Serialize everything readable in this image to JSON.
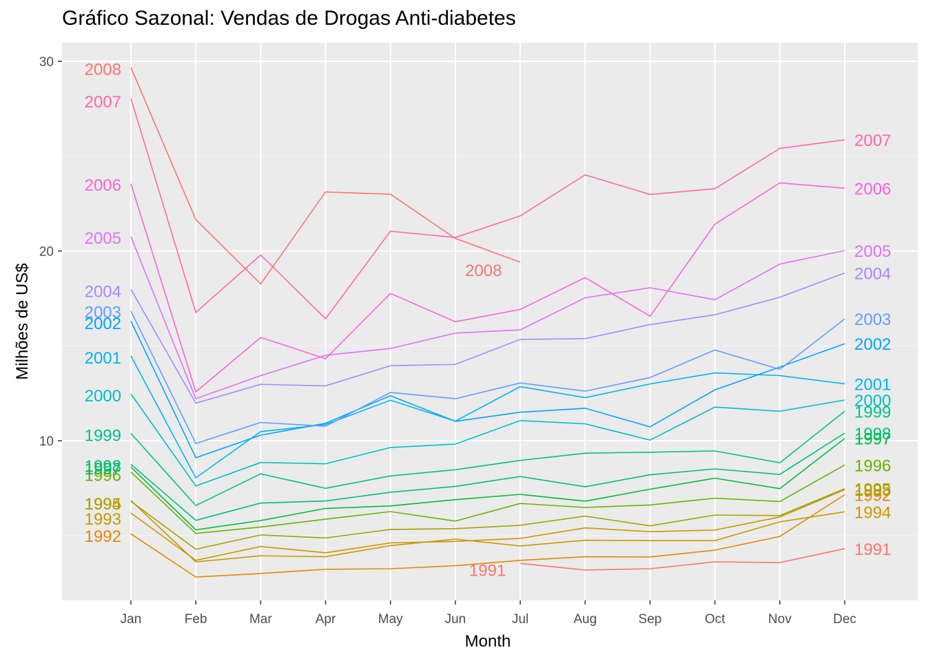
{
  "chart_data": {
    "type": "line",
    "title": "Gráfico Sazonal: Vendas de Drogas Anti-diabetes",
    "xlabel": "Month",
    "ylabel": "Milhões de US$",
    "categories": [
      "Jan",
      "Feb",
      "Mar",
      "Apr",
      "May",
      "Jun",
      "Jul",
      "Aug",
      "Sep",
      "Oct",
      "Nov",
      "Dec"
    ],
    "ylim": [
      2.8,
      31.3
    ],
    "yticks": [
      10,
      20,
      30
    ],
    "grid": true,
    "legend": "none",
    "series": [
      {
        "name": "1991",
        "color": "#F8766D",
        "values": [
          null,
          null,
          null,
          null,
          null,
          null,
          3.53,
          3.18,
          3.25,
          3.61,
          3.57,
          4.31
        ],
        "left_label": false,
        "mid_label": "Jun"
      },
      {
        "name": "1992",
        "color": "#E58700",
        "values": [
          5.09,
          2.81,
          3.0,
          3.22,
          3.25,
          3.41,
          3.69,
          3.88,
          3.87,
          4.23,
          4.95,
          7.15
        ],
        "left_label": true
      },
      {
        "name": "1993",
        "color": "#C99800",
        "values": [
          6.19,
          3.69,
          4.42,
          4.09,
          4.61,
          4.69,
          4.85,
          5.4,
          5.2,
          5.29,
          5.98,
          7.42
        ],
        "left_label": true
      },
      {
        "name": "1994",
        "color": "#C99800",
        "values": [
          6.85,
          3.61,
          3.93,
          3.88,
          4.47,
          4.81,
          4.45,
          4.75,
          4.73,
          4.73,
          5.72,
          6.25
        ],
        "left_label": true
      },
      {
        "name": "1995",
        "color": "#A3A500",
        "values": [
          6.8,
          4.28,
          5.03,
          4.87,
          5.32,
          5.36,
          5.54,
          6.02,
          5.51,
          6.08,
          6.05,
          7.47
        ],
        "left_label": true
      },
      {
        "name": "1996",
        "color": "#6BB100",
        "values": [
          8.35,
          5.11,
          5.45,
          5.86,
          6.26,
          5.76,
          6.69,
          6.48,
          6.61,
          6.97,
          6.79,
          8.72
        ],
        "left_label": true
      },
      {
        "name": "1997",
        "color": "#00BA38",
        "values": [
          8.61,
          5.3,
          5.79,
          6.43,
          6.56,
          6.89,
          7.17,
          6.81,
          7.44,
          8.02,
          7.47,
          10.12
        ],
        "left_label": true
      },
      {
        "name": "1998",
        "color": "#00BF7D",
        "values": [
          8.75,
          5.8,
          6.71,
          6.82,
          7.28,
          7.59,
          8.11,
          7.57,
          8.2,
          8.51,
          8.22,
          10.4
        ],
        "left_label": true
      },
      {
        "name": "1999",
        "color": "#00C08B",
        "values": [
          10.38,
          6.58,
          8.25,
          7.49,
          8.14,
          8.47,
          8.96,
          9.34,
          9.39,
          9.46,
          8.83,
          11.55
        ],
        "left_label": true
      },
      {
        "name": "2000",
        "color": "#00BFC4",
        "values": [
          12.47,
          7.61,
          8.85,
          8.78,
          9.64,
          9.82,
          11.06,
          10.89,
          10.03,
          11.77,
          11.55,
          12.14
        ],
        "left_label": true
      },
      {
        "name": "2001",
        "color": "#00B4F0",
        "values": [
          14.47,
          8.04,
          10.48,
          10.85,
          12.13,
          11.03,
          12.85,
          12.27,
          12.99,
          13.57,
          13.43,
          13.0
        ],
        "left_label": true
      },
      {
        "name": "2002",
        "color": "#00A5FF",
        "values": [
          16.3,
          9.1,
          10.29,
          10.92,
          12.37,
          11.02,
          11.5,
          11.71,
          10.73,
          12.68,
          13.88,
          15.11
        ],
        "left_label": true
      },
      {
        "name": "2003",
        "color": "#619CFF",
        "values": [
          16.83,
          9.85,
          10.96,
          10.76,
          12.54,
          12.21,
          13.04,
          12.61,
          13.33,
          14.78,
          13.76,
          16.42
        ],
        "left_label": true
      },
      {
        "name": "2004",
        "color": "#A58AFF",
        "values": [
          17.98,
          11.98,
          12.97,
          12.89,
          13.95,
          14.02,
          15.34,
          15.38,
          16.12,
          16.64,
          17.56,
          18.84
        ],
        "left_label": true
      },
      {
        "name": "2005",
        "color": "#DF70F8",
        "values": [
          20.76,
          12.21,
          13.43,
          14.5,
          14.86,
          15.67,
          15.84,
          17.53,
          18.06,
          17.43,
          19.31,
          20.02
        ],
        "left_label": true
      },
      {
        "name": "2006",
        "color": "#FB61D7",
        "values": [
          23.55,
          12.57,
          15.44,
          14.32,
          17.76,
          16.27,
          16.92,
          18.6,
          16.56,
          21.41,
          23.59,
          23.31
        ],
        "left_label": true
      },
      {
        "name": "2007",
        "color": "#FF66A8",
        "values": [
          28.04,
          16.76,
          19.79,
          16.43,
          21.04,
          20.71,
          21.85,
          24.01,
          22.98,
          23.28,
          25.41,
          25.86
        ],
        "left_label": true
      },
      {
        "name": "2008",
        "color": "#F8766D",
        "values": [
          29.67,
          21.65,
          18.26,
          23.11,
          22.99,
          20.66,
          19.41,
          null,
          null,
          null,
          null,
          null
        ],
        "left_label": true,
        "mid_label": "Jul"
      }
    ],
    "left_label_y": {
      "1992": [
        5.0
      ],
      "1993": [
        5.9
      ],
      "1994": [
        6.7
      ],
      "1995": [
        6.7
      ],
      "1996": [
        8.2
      ],
      "1997": [
        8.55
      ],
      "1998": [
        8.7
      ],
      "1999": [
        10.3
      ],
      "2000": [
        12.4
      ],
      "2001": [
        14.4
      ],
      "2002": [
        16.2
      ],
      "2003": [
        16.8
      ],
      "2004": [
        17.9
      ],
      "2005": [
        20.7
      ],
      "2006": [
        23.5
      ],
      "2007": [
        27.9
      ],
      "2008": [
        29.6
      ]
    }
  }
}
